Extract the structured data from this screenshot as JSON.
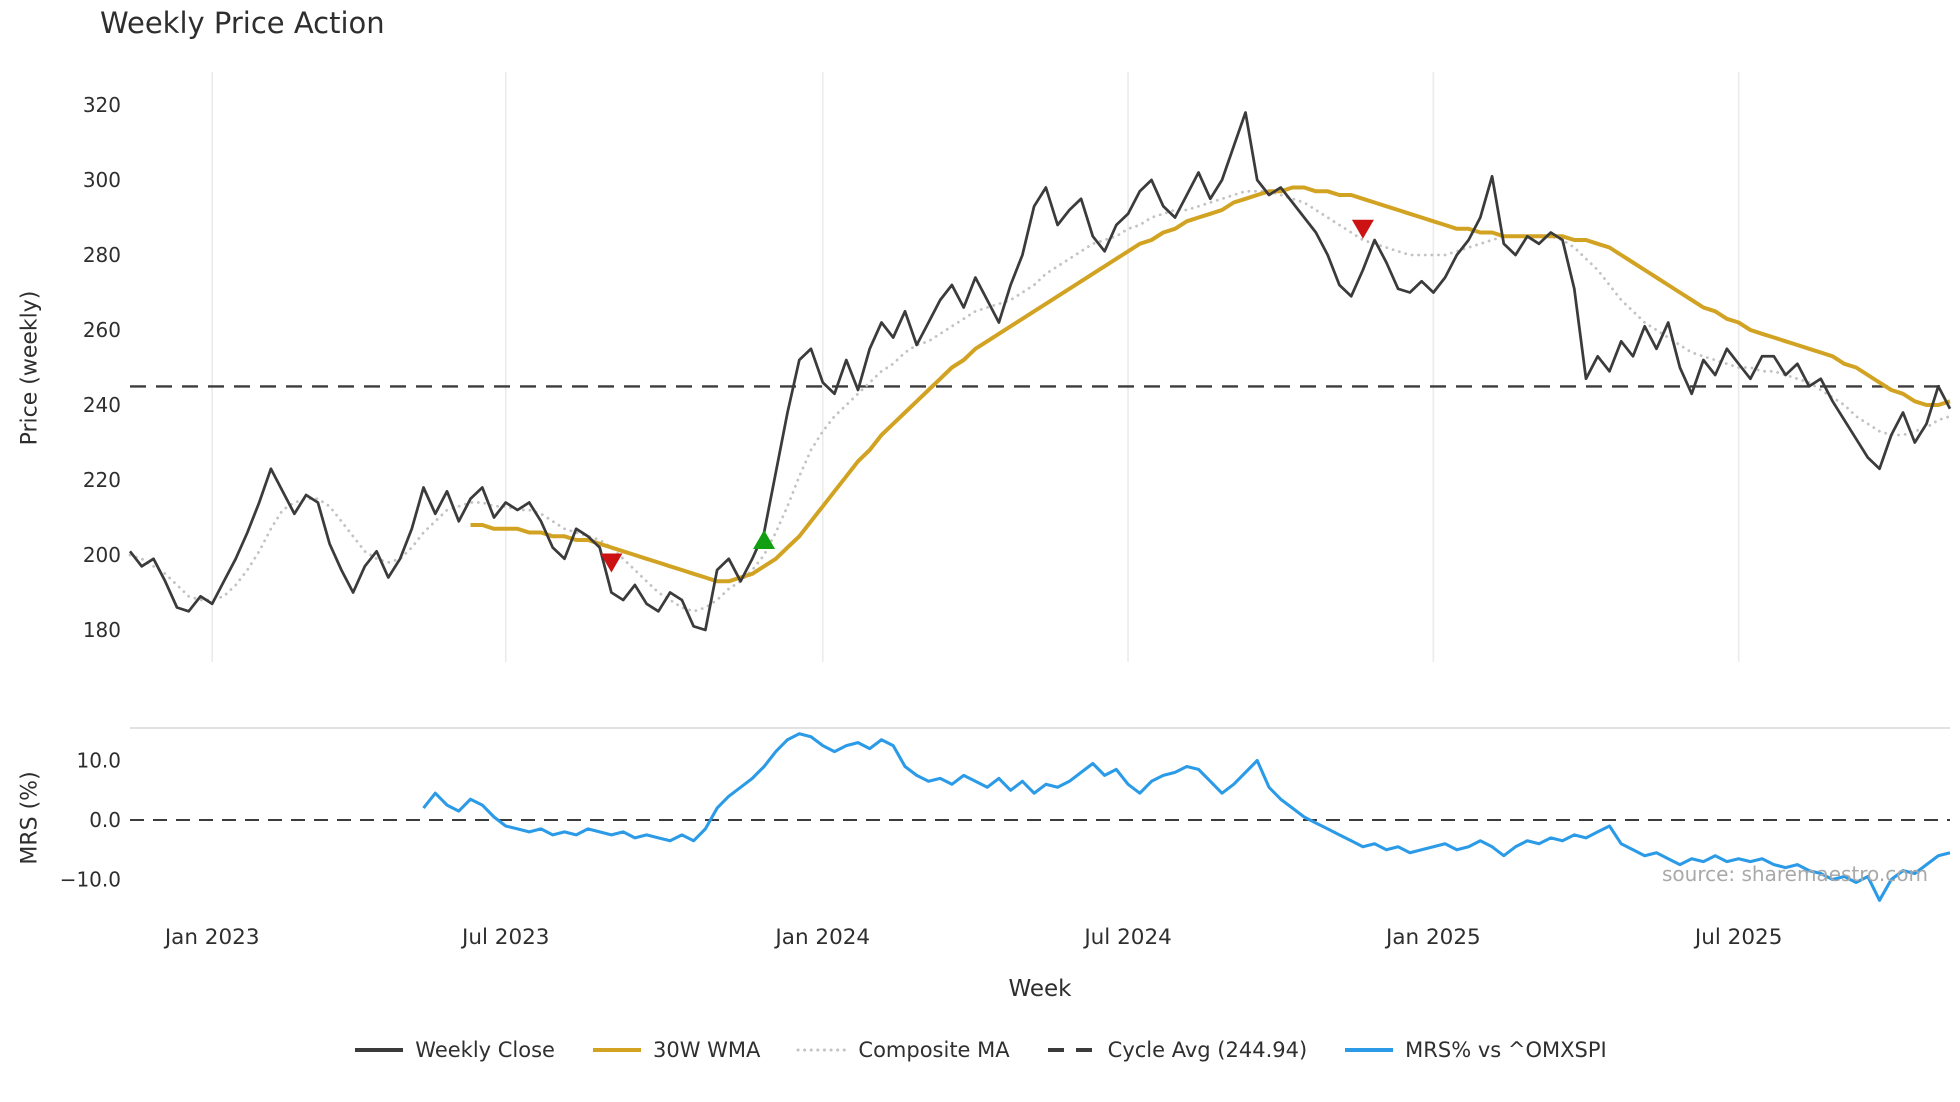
{
  "source_text": "source: sharemaestro.com",
  "chart_data": {
    "type": "line",
    "title": "Weekly Price Action",
    "xlabel": "Week",
    "ylabel_main": "Price (weekly)",
    "ylabel_sub": "MRS (%)",
    "grid": "vertical-only",
    "legend_position": "bottom-center",
    "cycle_avg": 244.94,
    "ylim_main": [
      170,
      328
    ],
    "ylim_sub": [
      -15.5,
      15.5
    ],
    "n_points": 156,
    "x_ticks": [
      {
        "index": 7,
        "label": "Jan 2023"
      },
      {
        "index": 32,
        "label": "Jul 2023"
      },
      {
        "index": 59,
        "label": "Jan 2024"
      },
      {
        "index": 85,
        "label": "Jul 2024"
      },
      {
        "index": 111,
        "label": "Jan 2025"
      },
      {
        "index": 137,
        "label": "Jul 2025"
      }
    ],
    "y_ticks_main": [
      180,
      200,
      220,
      240,
      260,
      280,
      300,
      320
    ],
    "y_ticks_sub": [
      {
        "value": 10,
        "label": "10.0"
      },
      {
        "value": 0,
        "label": "0.0"
      },
      {
        "value": -10,
        "label": "−10.0"
      }
    ],
    "series": [
      {
        "name": "Weekly Close",
        "panel": "main",
        "color": "#3b3b3b",
        "width": 2.75,
        "start_index": 0,
        "values": [
          201,
          197,
          199,
          193,
          186,
          185,
          189,
          187,
          193,
          199,
          206,
          214,
          223,
          217,
          211,
          216,
          214,
          203,
          196,
          190,
          197,
          201,
          194,
          199,
          207,
          218,
          211,
          217,
          209,
          215,
          218,
          210,
          214,
          212,
          214,
          209,
          202,
          199,
          207,
          205,
          202,
          190,
          188,
          192,
          187,
          185,
          190,
          188,
          181,
          180,
          196,
          199,
          193,
          199,
          206,
          222,
          238,
          252,
          255,
          246,
          243,
          252,
          244,
          255,
          262,
          258,
          265,
          256,
          262,
          268,
          272,
          266,
          274,
          268,
          262,
          272,
          280,
          293,
          298,
          288,
          292,
          295,
          285,
          281,
          288,
          291,
          297,
          300,
          293,
          290,
          296,
          302,
          295,
          300,
          309,
          318,
          300,
          296,
          298,
          294,
          290,
          286,
          280,
          272,
          269,
          276,
          284,
          278,
          271,
          270,
          273,
          270,
          274,
          280,
          284,
          290,
          301,
          283,
          280,
          285,
          283,
          286,
          284,
          271,
          247,
          253,
          249,
          257,
          253,
          261,
          255,
          262,
          250,
          243,
          252,
          248,
          255,
          251,
          247,
          253,
          253,
          248,
          251,
          245,
          247,
          241,
          236,
          231,
          226,
          223,
          232,
          238,
          230,
          235,
          245,
          239
        ]
      },
      {
        "name": "30W WMA",
        "panel": "main",
        "color": "#d2a322",
        "width": 4,
        "start_index": 29,
        "values": [
          208,
          208,
          207,
          207,
          207,
          206,
          206,
          205,
          205,
          204,
          204,
          203,
          202,
          201,
          200,
          199,
          198,
          197,
          196,
          195,
          194,
          193,
          193,
          194,
          195,
          197,
          199,
          202,
          205,
          209,
          213,
          217,
          221,
          225,
          228,
          232,
          235,
          238,
          241,
          244,
          247,
          250,
          252,
          255,
          257,
          259,
          261,
          263,
          265,
          267,
          269,
          271,
          273,
          275,
          277,
          279,
          281,
          283,
          284,
          286,
          287,
          289,
          290,
          291,
          292,
          294,
          295,
          296,
          297,
          297,
          298,
          298,
          297,
          297,
          296,
          296,
          295,
          294,
          293,
          292,
          291,
          290,
          289,
          288,
          287,
          287,
          286,
          286,
          285,
          285,
          285,
          285,
          285,
          285,
          284,
          284,
          283,
          282,
          280,
          278,
          276,
          274,
          272,
          270,
          268,
          266,
          265,
          263,
          262,
          260,
          259,
          258,
          257,
          256,
          255,
          254,
          253,
          251,
          250,
          248,
          246,
          244,
          243,
          241,
          240,
          240,
          241
        ]
      },
      {
        "name": "Composite MA",
        "panel": "main",
        "color": "#c3c3c3",
        "width": 2.8,
        "dash": "0.1 6.5",
        "linecap": "round",
        "start_index": 0,
        "values": [
          200,
          199,
          197,
          195,
          192,
          189,
          188,
          188,
          189,
          192,
          196,
          201,
          207,
          212,
          214,
          215,
          215,
          213,
          209,
          205,
          201,
          199,
          198,
          199,
          202,
          206,
          209,
          212,
          213,
          214,
          214,
          213,
          213,
          212,
          212,
          211,
          209,
          207,
          206,
          205,
          204,
          202,
          199,
          196,
          193,
          190,
          188,
          186,
          185,
          186,
          188,
          191,
          193,
          196,
          200,
          206,
          213,
          221,
          228,
          233,
          237,
          240,
          243,
          246,
          249,
          251,
          254,
          256,
          257,
          259,
          261,
          263,
          265,
          266,
          267,
          268,
          270,
          272,
          275,
          277,
          279,
          281,
          283,
          284,
          285,
          287,
          288,
          290,
          291,
          292,
          292,
          293,
          294,
          295,
          296,
          297,
          297,
          297,
          296,
          295,
          294,
          292,
          290,
          288,
          286,
          284,
          283,
          282,
          281,
          280,
          280,
          280,
          280,
          281,
          282,
          283,
          284,
          285,
          285,
          285,
          285,
          285,
          284,
          282,
          279,
          276,
          272,
          268,
          265,
          262,
          260,
          258,
          256,
          254,
          253,
          252,
          251,
          250,
          250,
          249,
          249,
          248,
          247,
          246,
          244,
          242,
          240,
          237,
          235,
          233,
          232,
          232,
          233,
          234,
          236,
          237
        ]
      },
      {
        "name": "MRS% vs ^OMXSPI",
        "panel": "sub",
        "color": "#2b9be8",
        "width": 3.1,
        "start_index": 25,
        "values": [
          2.0,
          4.5,
          2.5,
          1.5,
          3.5,
          2.5,
          0.5,
          -1.0,
          -1.5,
          -2.0,
          -1.5,
          -2.5,
          -2.0,
          -2.5,
          -1.5,
          -2.0,
          -2.5,
          -2.0,
          -3.0,
          -2.5,
          -3.0,
          -3.5,
          -2.5,
          -3.5,
          -1.5,
          2.0,
          4.0,
          5.5,
          7.0,
          9.0,
          11.5,
          13.5,
          14.5,
          14.0,
          12.5,
          11.5,
          12.5,
          13.0,
          12.0,
          13.5,
          12.5,
          9.0,
          7.5,
          6.5,
          7.0,
          6.0,
          7.5,
          6.5,
          5.5,
          7.0,
          5.0,
          6.5,
          4.5,
          6.0,
          5.5,
          6.5,
          8.0,
          9.5,
          7.5,
          8.5,
          6.0,
          4.5,
          6.5,
          7.5,
          8.0,
          9.0,
          8.5,
          6.5,
          4.5,
          6.0,
          8.0,
          10.0,
          5.5,
          3.5,
          2.0,
          0.5,
          -0.5,
          -1.5,
          -2.5,
          -3.5,
          -4.5,
          -4.0,
          -5.0,
          -4.5,
          -5.5,
          -5.0,
          -4.5,
          -4.0,
          -5.0,
          -4.5,
          -3.5,
          -4.5,
          -6.0,
          -4.5,
          -3.5,
          -4.0,
          -3.0,
          -3.5,
          -2.5,
          -3.0,
          -2.0,
          -1.0,
          -4.0,
          -5.0,
          -6.0,
          -5.5,
          -6.5,
          -7.5,
          -6.5,
          -7.0,
          -6.0,
          -7.0,
          -6.5,
          -7.0,
          -6.5,
          -7.5,
          -8.0,
          -7.5,
          -8.5,
          -9.0,
          -10.0,
          -9.5,
          -10.5,
          -9.5,
          -13.5,
          -10.0,
          -8.5,
          -9.0,
          -7.5,
          -6.0,
          -5.5
        ]
      }
    ],
    "markers": [
      {
        "type": "sell",
        "direction": "down",
        "index": 41,
        "value": 198,
        "color": "#cc1212"
      },
      {
        "type": "buy",
        "direction": "up",
        "index": 54,
        "value": 204,
        "color": "#12a012"
      },
      {
        "type": "sell",
        "direction": "down",
        "index": 105,
        "value": 287,
        "color": "#cc1212"
      }
    ],
    "legend": [
      {
        "label": "Weekly Close",
        "color": "#3b3b3b",
        "style": "solid"
      },
      {
        "label": "30W WMA",
        "color": "#d2a322",
        "style": "solid"
      },
      {
        "label": "Composite MA",
        "color": "#c3c3c3",
        "style": "dotted"
      },
      {
        "label": "Cycle Avg (244.94)",
        "color": "#3b3b3b",
        "style": "dashed"
      },
      {
        "label": "MRS% vs ^OMXSPI",
        "color": "#2b9be8",
        "style": "solid"
      }
    ]
  }
}
